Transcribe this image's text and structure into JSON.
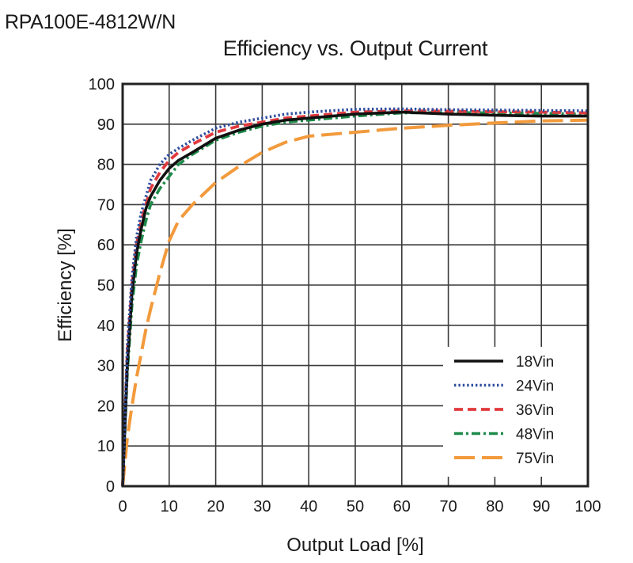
{
  "header": {
    "model": "RPA100E-4812W/N"
  },
  "chart_data": {
    "type": "line",
    "title": "Efficiency vs. Output Current",
    "xlabel": "Output Load [%]",
    "ylabel": "Efficiency [%]",
    "xlim": [
      0,
      100
    ],
    "ylim": [
      0,
      100
    ],
    "xticks": [
      0,
      10,
      20,
      30,
      40,
      50,
      60,
      70,
      80,
      90,
      100
    ],
    "yticks": [
      0,
      10,
      20,
      30,
      40,
      50,
      60,
      70,
      80,
      90,
      100
    ],
    "grid": true,
    "legend_position": "bottom-right",
    "series": [
      {
        "name": "18Vin",
        "color": "#111111",
        "dash": "solid",
        "x": [
          0,
          1,
          2,
          3,
          4,
          5,
          6,
          8,
          10,
          12,
          15,
          20,
          25,
          30,
          35,
          40,
          50,
          60,
          70,
          80,
          90,
          100
        ],
        "y": [
          0,
          30,
          48,
          58,
          64,
          69,
          72,
          76,
          79,
          81,
          83,
          86.5,
          88.5,
          90,
          91,
          91.5,
          92.5,
          93,
          92.5,
          92.2,
          92,
          92
        ]
      },
      {
        "name": "24Vin",
        "color": "#2e4d9c",
        "dash": "dotted",
        "x": [
          0,
          1,
          2,
          3,
          4,
          5,
          6,
          8,
          10,
          12,
          15,
          20,
          25,
          30,
          35,
          40,
          50,
          60,
          70,
          80,
          90,
          100
        ],
        "y": [
          0,
          35,
          52,
          62,
          68,
          72,
          76,
          80,
          82.5,
          84,
          86,
          89,
          90.5,
          91.5,
          92.5,
          93,
          93.7,
          93.8,
          93.6,
          93.5,
          93.4,
          93.3
        ]
      },
      {
        "name": "36Vin",
        "color": "#e03a3e",
        "dash": "dashed",
        "x": [
          0,
          1,
          2,
          3,
          4,
          5,
          6,
          8,
          10,
          12,
          15,
          20,
          25,
          30,
          35,
          40,
          50,
          60,
          70,
          80,
          90,
          100
        ],
        "y": [
          0,
          33,
          50,
          60,
          66,
          70,
          74,
          78,
          81,
          83,
          85,
          88,
          89.5,
          90.5,
          91.5,
          92,
          93,
          93.3,
          93.2,
          93.1,
          93,
          92.8
        ]
      },
      {
        "name": "48Vin",
        "color": "#1e8a4a",
        "dash": "dashdot",
        "x": [
          0,
          1,
          2,
          3,
          4,
          5,
          6,
          8,
          10,
          12,
          15,
          20,
          25,
          30,
          35,
          40,
          50,
          60,
          70,
          80,
          90,
          100
        ],
        "y": [
          0,
          28,
          45,
          55,
          61,
          66,
          70,
          74,
          77,
          80,
          82.5,
          86,
          88,
          89.5,
          90.5,
          91,
          92,
          92.8,
          92.9,
          92.8,
          92.7,
          92.5
        ]
      },
      {
        "name": "75Vin",
        "color": "#f29a3c",
        "dash": "longdash",
        "x": [
          0,
          1,
          2,
          3,
          4,
          5,
          6,
          8,
          10,
          12,
          15,
          20,
          25,
          30,
          35,
          40,
          50,
          60,
          70,
          80,
          90,
          100
        ],
        "y": [
          0,
          12,
          20,
          27,
          33,
          39,
          44,
          53,
          61,
          66,
          70,
          75.5,
          79.5,
          83,
          85.5,
          87,
          88,
          89,
          89.7,
          90.3,
          90.8,
          91
        ]
      }
    ]
  }
}
